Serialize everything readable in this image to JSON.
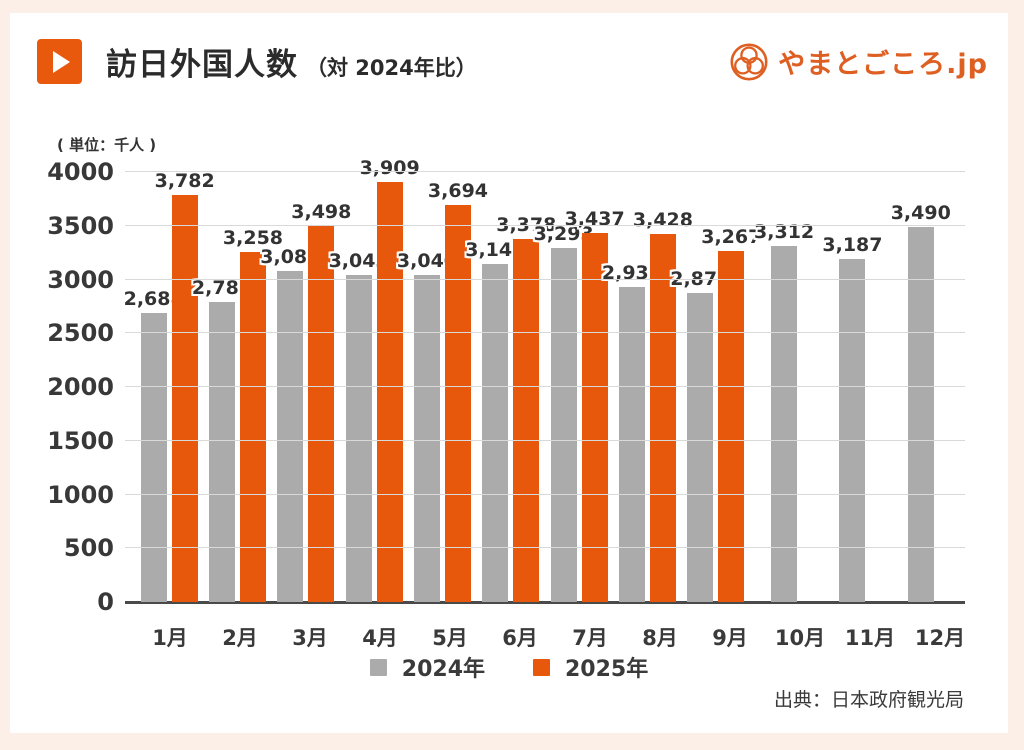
{
  "frame": {
    "bg": "#FBEFE7",
    "card_bg": "#FFFFFF",
    "accent": "#E8590D"
  },
  "header": {
    "title": "訪日外国人数",
    "subtitle": "（対 2024年比）"
  },
  "logo": {
    "text": "やまとごころ.jp",
    "color": "#DE5F22",
    "icon": "yamatogokoro-trefoil-mark"
  },
  "unit_label": "( 単位：千人 )",
  "source": "出典：日本政府観光局",
  "chart_data": {
    "type": "bar",
    "title": "訪日外国人数（対 2024年比）",
    "xlabel": "",
    "ylabel": "千人",
    "categories": [
      "1月",
      "2月",
      "3月",
      "4月",
      "5月",
      "6月",
      "7月",
      "8月",
      "9月",
      "10月",
      "11月",
      "12月"
    ],
    "series": [
      {
        "name": "2024年",
        "color": "#ABABAB",
        "values": [
          2688,
          2788,
          3082,
          3043,
          3040,
          3141,
          3293,
          2933,
          2872,
          3312,
          3187,
          3490
        ],
        "labels": [
          "2,688",
          "2,788",
          "3,082",
          "3,043",
          "3,040",
          "3,141",
          "3,293",
          "2,933",
          "2,872",
          "3,312",
          "3,187",
          "3,490"
        ]
      },
      {
        "name": "2025年",
        "color": "#E8580C",
        "values": [
          3782,
          3258,
          3498,
          3909,
          3694,
          3378,
          3437,
          3428,
          3267,
          null,
          null,
          null
        ],
        "labels": [
          "3,782",
          "3,258",
          "3,498",
          "3,909",
          "3,694",
          "3,378",
          "3,437",
          "3,428",
          "3,267",
          null,
          null,
          null
        ]
      }
    ],
    "ylim": [
      0,
      4000
    ],
    "yticks": [
      0,
      500,
      1000,
      1500,
      2000,
      2500,
      3000,
      3500,
      4000
    ],
    "grid": "horizontal",
    "legend_position": "bottom"
  }
}
